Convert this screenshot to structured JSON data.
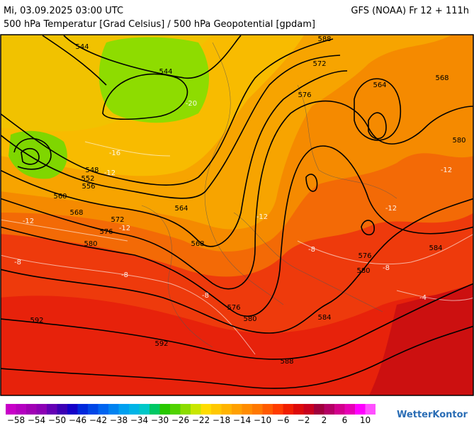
{
  "header": {
    "datetime": "Mi, 03.09.2025 03:00 UTC",
    "model": "GFS (NOAA) Fr 12 + 111h",
    "subtitle": "500 hPa Temperatur [Grad Celsius] / 500 hPa Geopotential [gpdam]"
  },
  "map": {
    "geopotential_labels": [
      "544",
      "544",
      "588",
      "572",
      "576",
      "564",
      "568",
      "580",
      "548",
      "552",
      "556",
      "560",
      "568",
      "572",
      "576",
      "580",
      "564",
      "568",
      "576",
      "580",
      "584",
      "576",
      "580",
      "584",
      "592",
      "592",
      "588"
    ],
    "temperature_labels": [
      "-16",
      "-20",
      "-12",
      "-12",
      "-12",
      "-12",
      "-12",
      "-12",
      "-8",
      "-8",
      "-8",
      "-8",
      "-8",
      "-4"
    ]
  },
  "legend": {
    "labels": [
      "−58",
      "−54",
      "−50",
      "−46",
      "−42",
      "−38",
      "−34",
      "−30",
      "−26",
      "−22",
      "−18",
      "−14",
      "−10",
      "−6",
      "−2",
      "2",
      "6",
      "10"
    ]
  },
  "brand": "WetterKontor"
}
